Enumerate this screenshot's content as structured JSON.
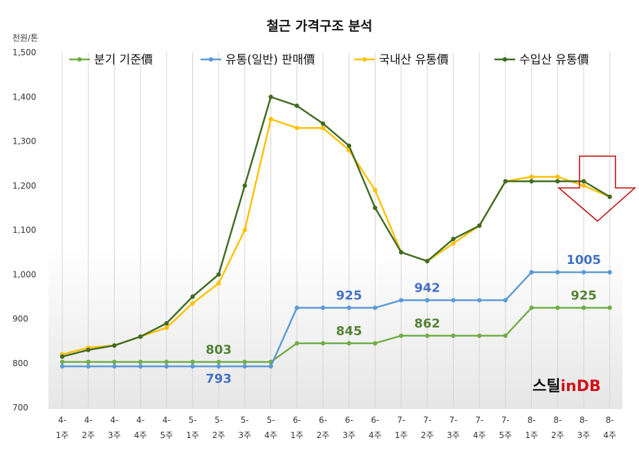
{
  "chart_data": {
    "type": "line",
    "title": "철근 가격구조 분석",
    "ylabel": "천원/톤",
    "ylim": [
      700,
      1500
    ],
    "yticks": [
      "700",
      "800",
      "900",
      "1,000",
      "1,100",
      "1,200",
      "1,300",
      "1,400",
      "1,500"
    ],
    "ytick_values": [
      700,
      800,
      900,
      1000,
      1100,
      1200,
      1300,
      1400,
      1500
    ],
    "legend_position": "top",
    "grid": "vertical",
    "categories": [
      [
        "4-",
        "1주"
      ],
      [
        "4-",
        "2주"
      ],
      [
        "4-",
        "3주"
      ],
      [
        "4-",
        "4주"
      ],
      [
        "4-",
        "5주"
      ],
      [
        "5-",
        "1주"
      ],
      [
        "5-",
        "2주"
      ],
      [
        "5-",
        "3주"
      ],
      [
        "5-",
        "4주"
      ],
      [
        "6-",
        "1주"
      ],
      [
        "6-",
        "2주"
      ],
      [
        "6-",
        "3주"
      ],
      [
        "6-",
        "4주"
      ],
      [
        "7-",
        "1주"
      ],
      [
        "7-",
        "2주"
      ],
      [
        "7-",
        "3주"
      ],
      [
        "7-",
        "4주"
      ],
      [
        "7-",
        "5주"
      ],
      [
        "8-",
        "1주"
      ],
      [
        "8-",
        "2주"
      ],
      [
        "8-",
        "3주"
      ],
      [
        "8-",
        "4주"
      ]
    ],
    "series": [
      {
        "name": "분기 기준價",
        "color": "#70ad47",
        "values": [
          803,
          803,
          803,
          803,
          803,
          803,
          803,
          803,
          803,
          845,
          845,
          845,
          845,
          862,
          862,
          862,
          862,
          862,
          925,
          925,
          925,
          925
        ]
      },
      {
        "name": "유통(일반) 판매價",
        "color": "#5b9bd5",
        "values": [
          793,
          793,
          793,
          793,
          793,
          793,
          793,
          793,
          793,
          925,
          925,
          925,
          925,
          942,
          942,
          942,
          942,
          942,
          1005,
          1005,
          1005,
          1005
        ]
      },
      {
        "name": "국내산 유통價",
        "color": "#ffc000",
        "values": [
          820,
          835,
          840,
          860,
          880,
          935,
          980,
          1100,
          1350,
          1330,
          1330,
          1280,
          1190,
          1050,
          1030,
          1070,
          1110,
          1210,
          1220,
          1220,
          1200,
          1175
        ]
      },
      {
        "name": "수입산 유통價",
        "color": "#3f6b22",
        "values": [
          815,
          830,
          840,
          860,
          890,
          950,
          1000,
          1200,
          1400,
          1380,
          1340,
          1290,
          1150,
          1050,
          1030,
          1080,
          1110,
          1210,
          1210,
          1210,
          1210,
          1175
        ]
      }
    ],
    "annotations": [
      {
        "text": "803",
        "series": 0,
        "index": 6,
        "color": "#548235",
        "pos": "above"
      },
      {
        "text": "793",
        "series": 1,
        "index": 6,
        "color": "#4472c4",
        "pos": "below"
      },
      {
        "text": "925",
        "series": 1,
        "index": 11,
        "color": "#4472c4",
        "pos": "above"
      },
      {
        "text": "845",
        "series": 0,
        "index": 11,
        "color": "#548235",
        "pos": "above"
      },
      {
        "text": "942",
        "series": 1,
        "index": 14,
        "color": "#4472c4",
        "pos": "above"
      },
      {
        "text": "862",
        "series": 0,
        "index": 14,
        "color": "#548235",
        "pos": "above"
      },
      {
        "text": "1005",
        "series": 1,
        "index": 20,
        "color": "#4472c4",
        "pos": "above"
      },
      {
        "text": "925",
        "series": 0,
        "index": 20,
        "color": "#548235",
        "pos": "above"
      }
    ],
    "arrow": {
      "color": "#c00000"
    }
  },
  "logo": {
    "part1": "스틸",
    "part2": "in",
    "part3": "DB"
  }
}
